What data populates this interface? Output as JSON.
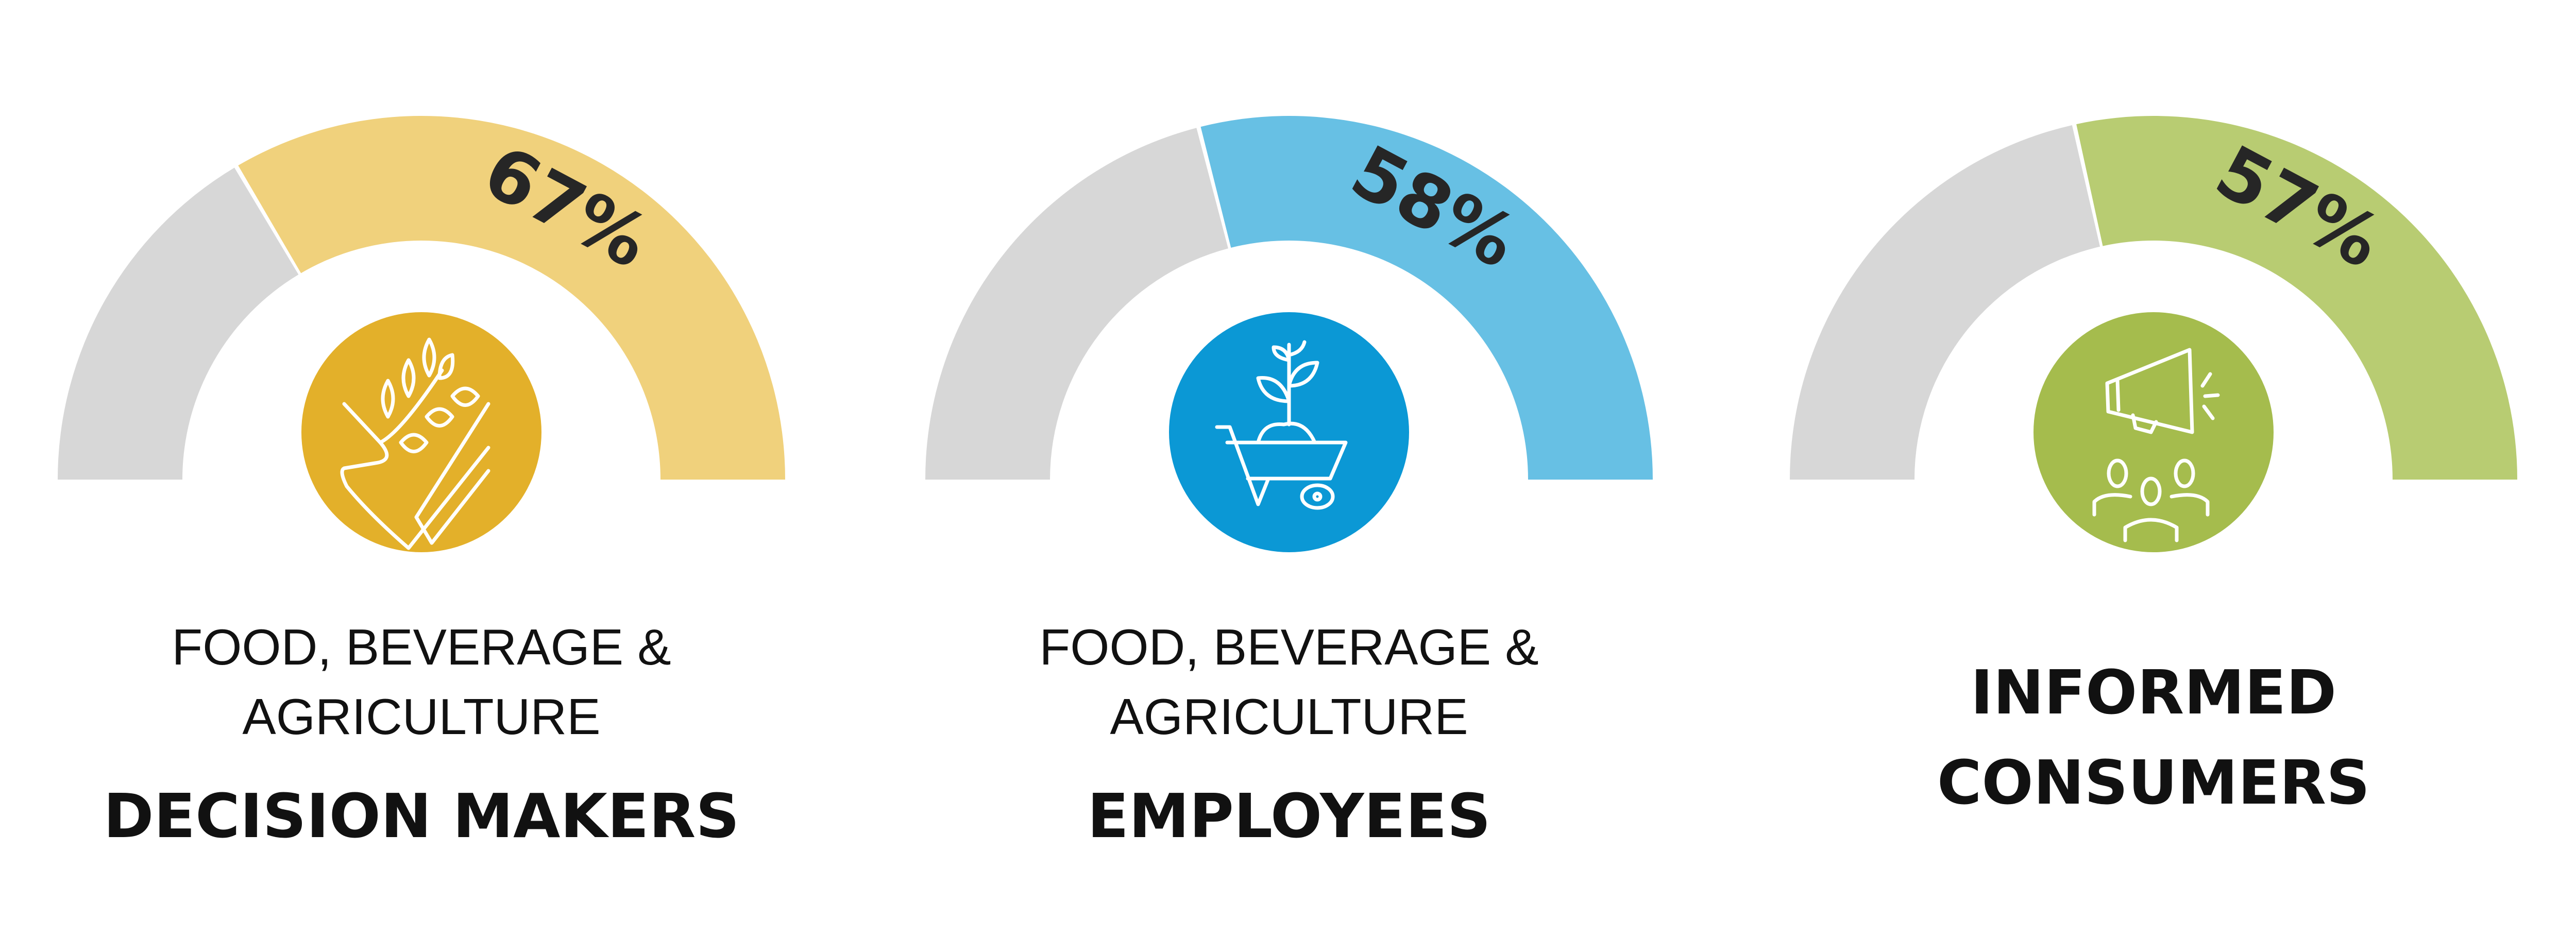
{
  "chart_data": {
    "type": "gauge",
    "range": [
      0,
      100
    ],
    "unit": "%",
    "track_color": "#d7d7d7",
    "series": [
      {
        "value": 67,
        "label": "67%",
        "line1": "FOOD, BEVERAGE &",
        "line2": "AGRICULTURE",
        "title": "DECISION MAKERS",
        "fill_color": "#f0d17c",
        "icon_color": "#e3b02a",
        "icon": "wheat-hand-icon"
      },
      {
        "value": 58,
        "label": "58%",
        "line1": "FOOD, BEVERAGE &",
        "line2": "AGRICULTURE",
        "title": "EMPLOYEES",
        "fill_color": "#67c0e4",
        "icon_color": "#0b98d5",
        "icon": "wheelbarrow-plant-icon"
      },
      {
        "value": 57,
        "label": "57%",
        "title_line1": "INFORMED",
        "title_line2": "CONSUMERS",
        "fill_color": "#b8cc72",
        "icon_color": "#a5bc4d",
        "icon": "megaphone-people-icon"
      }
    ]
  }
}
